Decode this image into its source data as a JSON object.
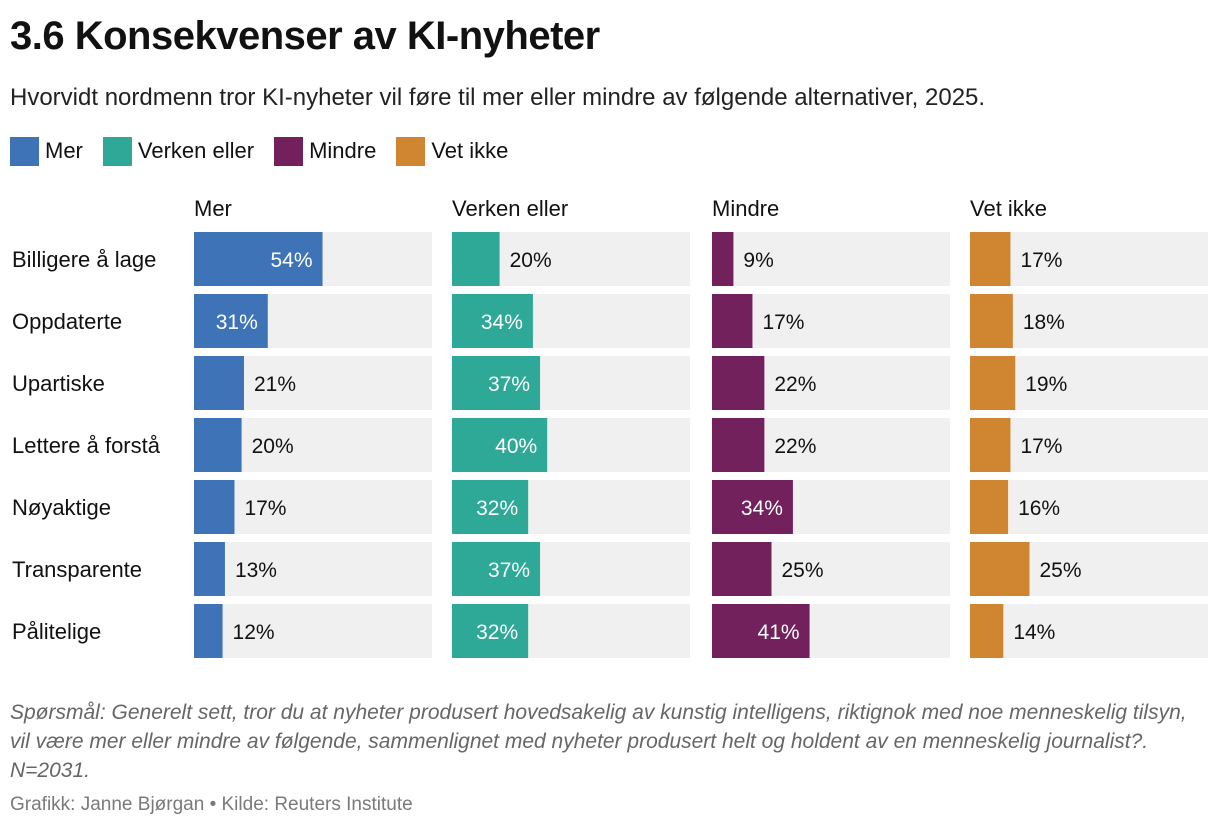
{
  "title": "3.6 Konsekvenser av KI-nyheter",
  "subtitle": "Hvorvidt nordmenn tror KI-nyheter vil føre til mer eller mindre av følgende alternativer, 2025.",
  "legend": [
    {
      "label": "Mer",
      "color": "#3f73b8"
    },
    {
      "label": "Verken eller",
      "color": "#2ea897"
    },
    {
      "label": "Mindre",
      "color": "#72215c"
    },
    {
      "label": "Vet ikke",
      "color": "#d08630"
    }
  ],
  "chart_data": {
    "type": "bar",
    "layout": "small-multiples-horizontal",
    "categories": [
      "Billigere å lage",
      "Oppdaterte",
      "Upartiske",
      "Lettere å forstå",
      "Nøyaktige",
      "Transparente",
      "Pålitelige"
    ],
    "series": [
      {
        "name": "Mer",
        "color": "#3f73b8",
        "values": [
          54,
          31,
          21,
          20,
          17,
          13,
          12
        ]
      },
      {
        "name": "Verken eller",
        "color": "#2ea897",
        "values": [
          20,
          34,
          37,
          40,
          32,
          37,
          32
        ]
      },
      {
        "name": "Mindre",
        "color": "#72215c",
        "values": [
          9,
          17,
          22,
          22,
          34,
          25,
          41
        ]
      },
      {
        "name": "Vet ikke",
        "color": "#d08630",
        "values": [
          17,
          18,
          19,
          17,
          16,
          25,
          14
        ]
      }
    ],
    "value_suffix": "%",
    "xlim": [
      0,
      100
    ],
    "track_color": "#f0f0f0",
    "grid": false
  },
  "footer": {
    "note": "Spørsmål: Generelt sett, tror du at nyheter produsert hovedsakelig av kunstig intelligens, riktignok med noe menneskelig tilsyn, vil være mer eller mindre av følgende, sammenlignet med nyheter produsert helt og holdent av en menneskelig journalist?. N=2031.",
    "credit": "Grafikk: Janne Bjørgan • Kilde: Reuters Institute"
  }
}
